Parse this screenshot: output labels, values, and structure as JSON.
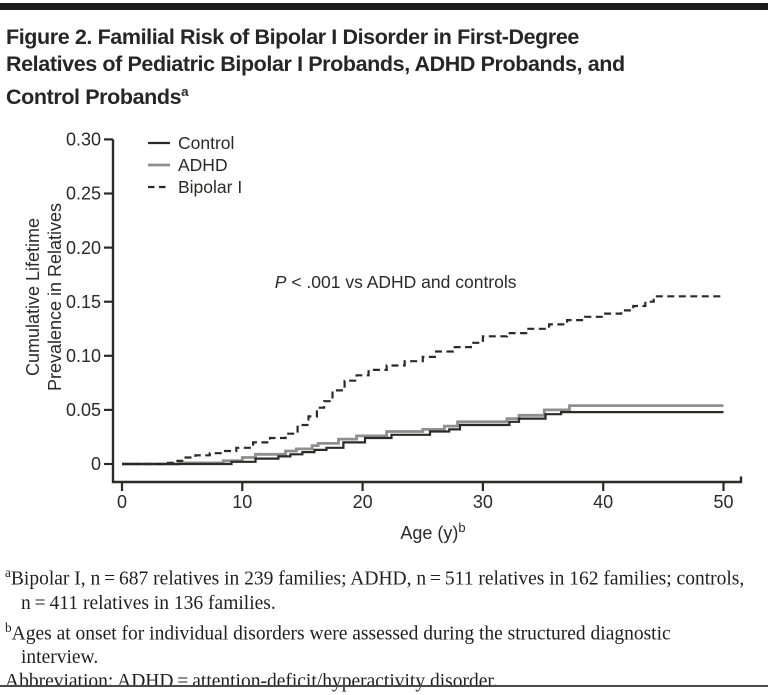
{
  "figure": {
    "title_lines": [
      "Figure 2. Familial Risk of Bipolar I Disorder in First-Degree",
      "Relatives of Pediatric Bipolar I Probands, ADHD Probands, and",
      "Control Probands"
    ],
    "title_superscript": "a",
    "top_bar_color": "#1c1c1c",
    "bottom_rule_color": "#4a4a4a"
  },
  "chart_data": {
    "type": "line",
    "subtype": "step",
    "xlabel": "Age (y)",
    "xlabel_superscript": "b",
    "ylabel_lines": [
      "Cumulative Lifetime",
      "Prevalence in Relatives"
    ],
    "xlim": [
      0,
      50
    ],
    "ylim": [
      0,
      0.3
    ],
    "grid": false,
    "legend_position": "upper-left",
    "annotation": {
      "italic": "P",
      "text": " < .001 vs ADHD and controls",
      "x_age": 12.7,
      "y_value": 0.168
    },
    "xticks": [
      {
        "v": 0,
        "label": "0"
      },
      {
        "v": 10,
        "label": "10"
      },
      {
        "v": 20,
        "label": "20"
      },
      {
        "v": 30,
        "label": "30"
      },
      {
        "v": 40,
        "label": "40"
      },
      {
        "v": 50,
        "label": "50"
      }
    ],
    "yticks": [
      {
        "v": 0.3,
        "label": "0.30"
      },
      {
        "v": 0.25,
        "label": "0.25"
      },
      {
        "v": 0.2,
        "label": "0.20"
      },
      {
        "v": 0.15,
        "label": "0.15"
      },
      {
        "v": 0.1,
        "label": "0.10"
      },
      {
        "v": 0.05,
        "label": "0.05"
      },
      {
        "v": 0,
        "label": "0"
      }
    ],
    "series": [
      {
        "name": "ADHD",
        "color": "#8f8f8f",
        "dash": null,
        "width": 2.8,
        "points": [
          [
            0,
            0
          ],
          [
            4.7,
            0.001
          ],
          [
            8.4,
            0.003
          ],
          [
            10,
            0.006
          ],
          [
            11.1,
            0.009
          ],
          [
            13.6,
            0.012
          ],
          [
            14.5,
            0.014
          ],
          [
            15.8,
            0.017
          ],
          [
            16.3,
            0.019
          ],
          [
            18,
            0.023
          ],
          [
            19.5,
            0.026
          ],
          [
            22,
            0.03
          ],
          [
            25,
            0.032
          ],
          [
            26.8,
            0.035
          ],
          [
            27.9,
            0.039
          ],
          [
            32,
            0.042
          ],
          [
            33,
            0.045
          ],
          [
            35.1,
            0.05
          ],
          [
            37.2,
            0.054
          ],
          [
            50,
            0.054
          ]
        ]
      },
      {
        "name": "Control",
        "color": "#2b2a29",
        "dash": null,
        "width": 2.2,
        "points": [
          [
            0,
            0
          ],
          [
            9.1,
            0.002
          ],
          [
            11.1,
            0.005
          ],
          [
            13,
            0.007
          ],
          [
            14,
            0.009
          ],
          [
            15,
            0.011
          ],
          [
            16,
            0.013
          ],
          [
            17,
            0.015
          ],
          [
            18.4,
            0.02
          ],
          [
            20.2,
            0.024
          ],
          [
            22.4,
            0.027
          ],
          [
            25.6,
            0.03
          ],
          [
            27.2,
            0.032
          ],
          [
            28.1,
            0.036
          ],
          [
            32.2,
            0.039
          ],
          [
            33,
            0.042
          ],
          [
            35.2,
            0.046
          ],
          [
            36.5,
            0.048
          ],
          [
            50,
            0.048
          ]
        ]
      },
      {
        "name": "Bipolar I",
        "color": "#2b2a29",
        "dash": "7 4.5",
        "width": 2.2,
        "points": [
          [
            0,
            0
          ],
          [
            3.5,
            0.001
          ],
          [
            4.4,
            0.003
          ],
          [
            5.1,
            0.006
          ],
          [
            6.1,
            0.008
          ],
          [
            7.3,
            0.01
          ],
          [
            8.4,
            0.012
          ],
          [
            9.5,
            0.015
          ],
          [
            10.9,
            0.02
          ],
          [
            12.3,
            0.024
          ],
          [
            13.6,
            0.028
          ],
          [
            14.6,
            0.036
          ],
          [
            15.5,
            0.044
          ],
          [
            16.2,
            0.052
          ],
          [
            16.8,
            0.058
          ],
          [
            17.5,
            0.068
          ],
          [
            18.5,
            0.077
          ],
          [
            19.5,
            0.082
          ],
          [
            20.5,
            0.087
          ],
          [
            22,
            0.091
          ],
          [
            23.5,
            0.095
          ],
          [
            25,
            0.099
          ],
          [
            26,
            0.104
          ],
          [
            27.5,
            0.108
          ],
          [
            29,
            0.112
          ],
          [
            30,
            0.118
          ],
          [
            32,
            0.121
          ],
          [
            33.6,
            0.125
          ],
          [
            35.5,
            0.129
          ],
          [
            37,
            0.133
          ],
          [
            38.5,
            0.136
          ],
          [
            40,
            0.139
          ],
          [
            41.5,
            0.142
          ],
          [
            42.5,
            0.146
          ],
          [
            43.5,
            0.15
          ],
          [
            44.2,
            0.155
          ],
          [
            50,
            0.155
          ]
        ]
      }
    ],
    "legend_order": [
      "Control",
      "ADHD",
      "Bipolar I"
    ]
  },
  "footnotes": [
    {
      "sup": "a",
      "text": "Bipolar I, n = 687 relatives in 239 families; ADHD, n = 511 relatives in 162 families; controls, n = 411 relatives in 136 families."
    },
    {
      "sup": "b",
      "text": "Ages at onset for individual disorders were assessed during the structured diagnostic interview."
    },
    {
      "sup": "",
      "text": "Abbreviation: ADHD = attention-deficit/hyperactivity disorder."
    }
  ]
}
